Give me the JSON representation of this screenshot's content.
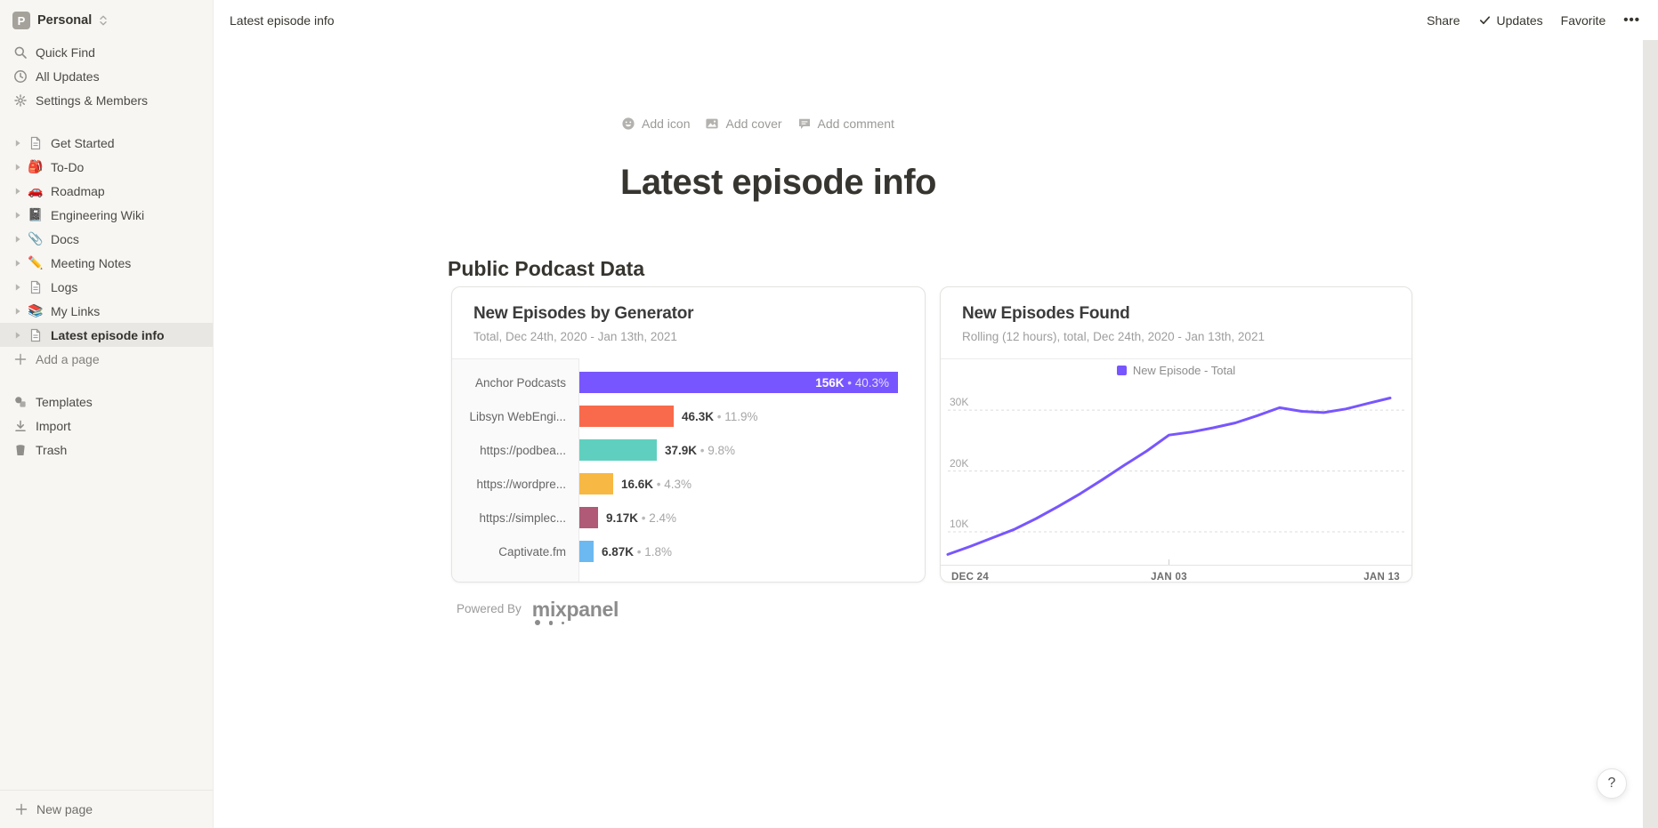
{
  "workspace": {
    "avatar_letter": "P",
    "name": "Personal"
  },
  "topbar": {
    "breadcrumb": "Latest episode info",
    "share_label": "Share",
    "updates_label": "Updates",
    "favorite_label": "Favorite",
    "more_label": "•••"
  },
  "sidebar": {
    "controls": [
      {
        "id": "quick-find",
        "icon": "search-icon",
        "label": "Quick Find"
      },
      {
        "id": "all-updates",
        "icon": "clock-icon",
        "label": "All Updates"
      },
      {
        "id": "settings-members",
        "icon": "gear-icon",
        "label": "Settings & Members"
      }
    ],
    "pages": [
      {
        "id": "get-started",
        "icon": "page-icon",
        "label": "Get Started",
        "selected": false
      },
      {
        "id": "to-do",
        "icon": "emoji",
        "emoji": "🎒",
        "label": "To-Do",
        "selected": false
      },
      {
        "id": "roadmap",
        "icon": "emoji",
        "emoji": "🚗",
        "label": "Roadmap",
        "selected": false
      },
      {
        "id": "engineering-wiki",
        "icon": "emoji",
        "emoji": "📓",
        "label": "Engineering Wiki",
        "selected": false
      },
      {
        "id": "docs",
        "icon": "emoji",
        "emoji": "📎",
        "label": "Docs",
        "selected": false
      },
      {
        "id": "meeting-notes",
        "icon": "emoji",
        "emoji": "✏️",
        "label": "Meeting Notes",
        "selected": false
      },
      {
        "id": "logs",
        "icon": "page-icon",
        "label": "Logs",
        "selected": false
      },
      {
        "id": "my-links",
        "icon": "emoji",
        "emoji": "📚",
        "label": "My Links",
        "selected": false
      },
      {
        "id": "latest-episode-info",
        "icon": "page-icon",
        "label": "Latest episode info",
        "selected": true
      }
    ],
    "add_page_label": "Add a page",
    "footer_items": [
      {
        "id": "templates",
        "icon": "templates-icon",
        "label": "Templates"
      },
      {
        "id": "import",
        "icon": "import-icon",
        "label": "Import"
      },
      {
        "id": "trash",
        "icon": "trash-icon",
        "label": "Trash"
      }
    ],
    "new_page_label": "New page"
  },
  "page": {
    "actions": {
      "add_icon": "Add icon",
      "add_cover": "Add cover",
      "add_comment": "Add comment"
    },
    "title": "Latest episode info",
    "section_heading": "Public Podcast Data",
    "powered_by_label": "Powered By",
    "mixpanel_wordmark": "mixpanel"
  },
  "chart_data": [
    {
      "type": "bar",
      "orientation": "horizontal",
      "title": "New Episodes by Generator",
      "subtitle": "Total, Dec 24th, 2020 - Jan 13th, 2021",
      "categories": [
        "Anchor Podcasts",
        "Libsyn WebEngi...",
        "https://podbea...",
        "https://wordpre...",
        "https://simplec...",
        "Captivate.fm"
      ],
      "values": [
        156000,
        46300,
        37900,
        16600,
        9170,
        6870
      ],
      "value_labels": [
        "156K",
        "46.3K",
        "37.9K",
        "16.6K",
        "9.17K",
        "6.87K"
      ],
      "percent_labels": [
        "40.3%",
        "11.9%",
        "9.8%",
        "4.3%",
        "2.4%",
        "1.8%"
      ],
      "bar_colors": [
        "#7856ff",
        "#f86a4b",
        "#5fd0bf",
        "#f7b844",
        "#b05a77",
        "#6cb9f1"
      ],
      "label_inside": [
        true,
        false,
        false,
        false,
        false,
        false
      ],
      "xlim": [
        0,
        156000
      ],
      "grid": false,
      "legend_position": "none"
    },
    {
      "type": "line",
      "title": "New Episodes Found",
      "subtitle": "Rolling (12 hours), total, Dec 24th, 2020 - Jan 13th, 2021",
      "legend": [
        {
          "label": "New Episode - Total",
          "color": "#7856ff"
        }
      ],
      "legend_position": "top-center",
      "x": [
        "Dec 24",
        "Dec 25",
        "Dec 26",
        "Dec 27",
        "Dec 28",
        "Dec 29",
        "Dec 30",
        "Dec 31",
        "Jan 01",
        "Jan 02",
        "Jan 03",
        "Jan 04",
        "Jan 05",
        "Jan 06",
        "Jan 07",
        "Jan 08",
        "Jan 09",
        "Jan 10",
        "Jan 11",
        "Jan 12",
        "Jan 13"
      ],
      "values": [
        6300,
        7600,
        9000,
        10400,
        12200,
        14200,
        16300,
        18600,
        21000,
        23300,
        25900,
        26400,
        27100,
        27900,
        29100,
        30400,
        29800,
        29600,
        30200,
        31100,
        32000
      ],
      "x_tick_labels": [
        "DEC 24",
        "JAN 03",
        "JAN 13"
      ],
      "y_ticks": [
        10000,
        20000,
        30000
      ],
      "y_tick_labels": [
        "10K",
        "20K",
        "30K"
      ],
      "ylim": [
        4600,
        34700
      ],
      "grid": "dashed-horizontal",
      "line_color": "#7856ff"
    }
  ],
  "help_button_label": "?"
}
